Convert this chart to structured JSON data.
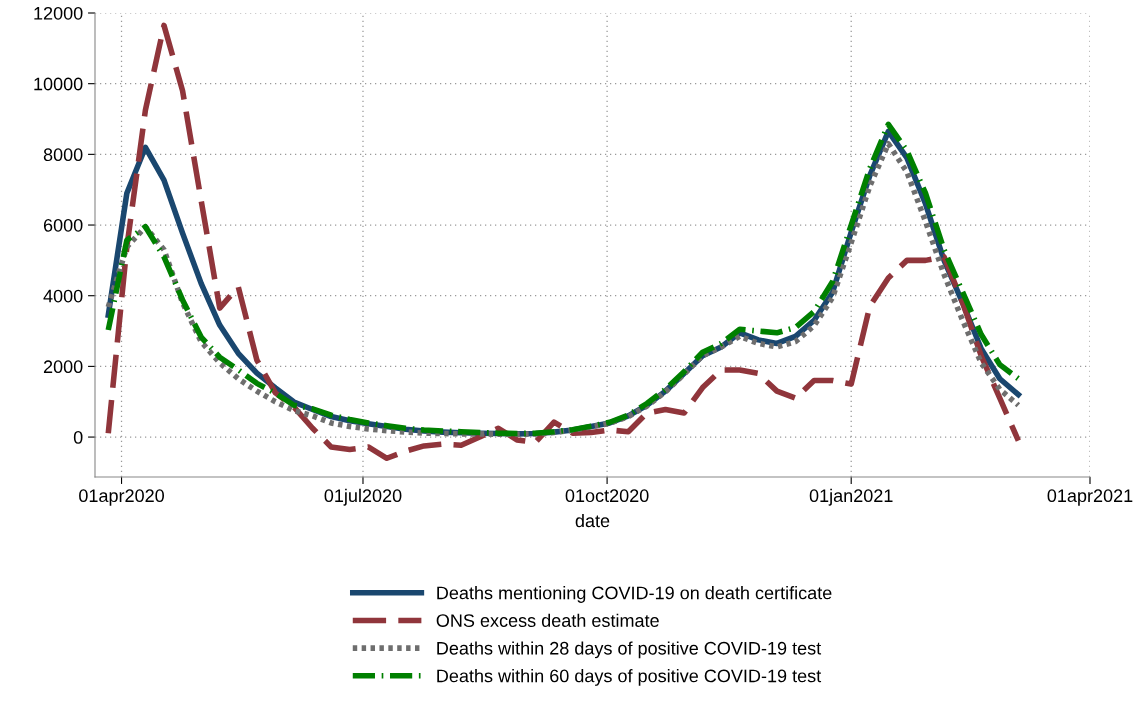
{
  "chart_data": {
    "type": "line",
    "xlabel": "date",
    "x": [
      "2020-03-27",
      "2020-04-03",
      "2020-04-10",
      "2020-04-17",
      "2020-04-24",
      "2020-05-01",
      "2020-05-08",
      "2020-05-15",
      "2020-05-22",
      "2020-05-29",
      "2020-06-05",
      "2020-06-12",
      "2020-06-19",
      "2020-06-26",
      "2020-07-03",
      "2020-07-10",
      "2020-07-17",
      "2020-07-24",
      "2020-07-31",
      "2020-08-07",
      "2020-08-14",
      "2020-08-21",
      "2020-08-28",
      "2020-09-04",
      "2020-09-11",
      "2020-09-18",
      "2020-09-25",
      "2020-10-02",
      "2020-10-09",
      "2020-10-16",
      "2020-10-23",
      "2020-10-30",
      "2020-11-06",
      "2020-11-13",
      "2020-11-20",
      "2020-11-27",
      "2020-12-04",
      "2020-12-11",
      "2020-12-18",
      "2020-12-25",
      "2021-01-01",
      "2021-01-08",
      "2021-01-15",
      "2021-01-22",
      "2021-01-29",
      "2021-02-05",
      "2021-02-12",
      "2021-02-19",
      "2021-02-26",
      "2021-03-05"
    ],
    "series": [
      {
        "name": "Deaths mentioning COVID-19 on death certificate",
        "color": "#1a476f",
        "line_style": "solid",
        "values": [
          3450,
          6900,
          8200,
          7270,
          5770,
          4350,
          3170,
          2370,
          1810,
          1390,
          990,
          780,
          580,
          460,
          380,
          300,
          220,
          170,
          140,
          120,
          110,
          100,
          90,
          100,
          140,
          200,
          300,
          400,
          600,
          900,
          1300,
          1800,
          2300,
          2550,
          2950,
          2750,
          2650,
          2850,
          3300,
          4100,
          5800,
          7400,
          8650,
          7900,
          6600,
          5000,
          3800,
          2500,
          1650,
          1200
        ]
      },
      {
        "name": "ONS excess death estimate",
        "color": "#90353b",
        "line_style": "dashed",
        "values": [
          110,
          5380,
          9250,
          11650,
          9800,
          6700,
          3650,
          4250,
          2180,
          1250,
          850,
          250,
          -280,
          -350,
          -280,
          -600,
          -400,
          -250,
          -200,
          -230,
          0,
          250,
          -80,
          -150,
          420,
          110,
          130,
          200,
          150,
          680,
          780,
          680,
          1400,
          1900,
          1900,
          1800,
          1300,
          1100,
          1600,
          1600,
          1500,
          3700,
          4500,
          5000,
          5000,
          5100,
          3800,
          2300,
          1100,
          -100
        ]
      },
      {
        "name": "Deaths within 28 days of positive COVID-19 test",
        "color": "#6e6e6e",
        "line_style": "dotted",
        "values": [
          3680,
          5380,
          5950,
          5300,
          3800,
          2700,
          2100,
          1650,
          1300,
          1000,
          750,
          600,
          400,
          300,
          230,
          180,
          140,
          110,
          100,
          90,
          90,
          80,
          80,
          90,
          130,
          190,
          290,
          390,
          580,
          880,
          1280,
          1780,
          2300,
          2550,
          2850,
          2650,
          2550,
          2700,
          3150,
          3950,
          5500,
          7100,
          8300,
          7500,
          6100,
          4600,
          3300,
          2100,
          1350,
          900
        ]
      },
      {
        "name": "Deaths within 60 days of positive COVID-19 test",
        "color": "#008000",
        "line_style": "dashdot",
        "values": [
          3030,
          5570,
          5950,
          5100,
          3880,
          2830,
          2260,
          1900,
          1520,
          1240,
          900,
          800,
          620,
          500,
          400,
          320,
          250,
          200,
          170,
          150,
          130,
          110,
          100,
          110,
          150,
          210,
          310,
          420,
          620,
          950,
          1350,
          1850,
          2400,
          2650,
          3050,
          3000,
          2950,
          3100,
          3550,
          4400,
          6000,
          7600,
          8850,
          8100,
          6900,
          5300,
          4100,
          2900,
          2050,
          1650
        ]
      }
    ],
    "xlim": [
      "2020-03-22",
      "2021-04-01"
    ],
    "xticks": [
      {
        "value": "2020-04-01",
        "label": "01apr2020"
      },
      {
        "value": "2020-07-01",
        "label": "01jul2020"
      },
      {
        "value": "2020-10-01",
        "label": "01oct2020"
      },
      {
        "value": "2021-01-01",
        "label": "01jan2021"
      },
      {
        "value": "2021-04-01",
        "label": "01apr2021"
      }
    ],
    "ylim": [
      -1130,
      12000
    ],
    "yticks": [
      0,
      2000,
      4000,
      6000,
      8000,
      10000,
      12000
    ],
    "grid": true,
    "legend": "bottom"
  }
}
